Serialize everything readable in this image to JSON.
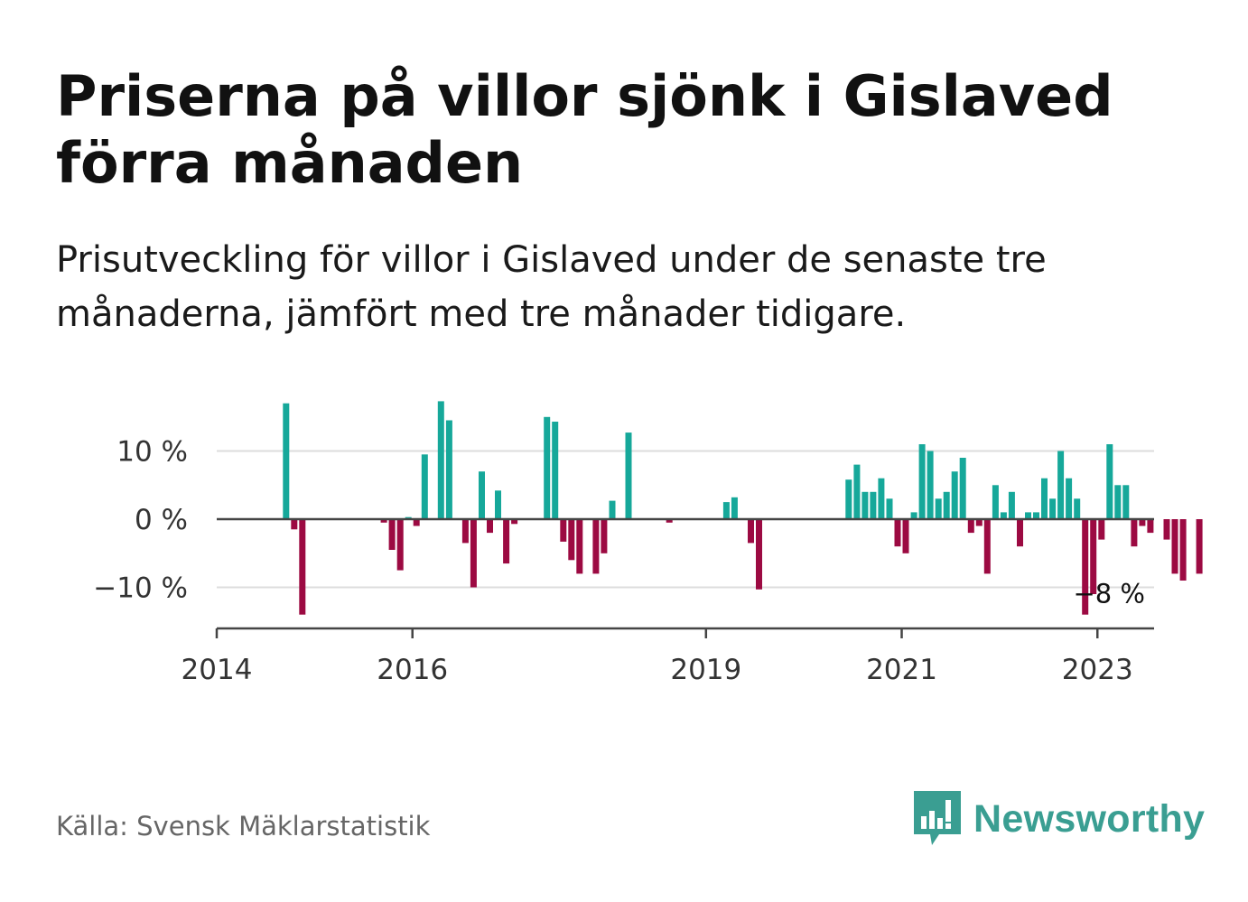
{
  "title": "Priserna på villor sjönk i Gislaved förra månaden",
  "subtitle": "Prisutveckling för villor i Gislaved under de senaste tre månaderna, jämfört med tre månader tidigare.",
  "source": "Källa: Svensk Mäklarstatistik",
  "brand": "Newsworthy",
  "colors": {
    "positive": "#16a89a",
    "negative": "#9c0a42",
    "grid": "#dddddd",
    "axis": "#444444",
    "brand": "#3a9e92"
  },
  "chart_data": {
    "type": "bar",
    "title": "",
    "xlabel": "",
    "ylabel": "",
    "ylim": [
      -16,
      18
    ],
    "y_ticks": [
      10,
      0,
      -10
    ],
    "y_tick_labels": [
      "10 %",
      "0 %",
      "−10 %"
    ],
    "x_ticks": [
      "2014",
      "2016",
      "2019",
      "2021",
      "2023"
    ],
    "start": "2014-01",
    "end_label": "−8 %",
    "series": [
      {
        "name": "Prisutveckling",
        "values": [
          null,
          null,
          null,
          null,
          null,
          null,
          null,
          null,
          17,
          -1.5,
          -14,
          null,
          null,
          null,
          null,
          null,
          null,
          null,
          null,
          null,
          -0.5,
          -4.5,
          -7.5,
          0.3,
          -1,
          9.5,
          null,
          17.3,
          14.5,
          null,
          -3.5,
          -10,
          7,
          -2,
          4.2,
          -6.5,
          -0.7,
          null,
          null,
          null,
          15,
          14.3,
          -3.3,
          -6,
          -8,
          null,
          -8,
          -5,
          2.7,
          null,
          12.7,
          null,
          null,
          null,
          null,
          -0.5,
          null,
          null,
          null,
          null,
          null,
          null,
          2.5,
          3.2,
          null,
          -3.5,
          -10.3,
          null,
          null,
          null,
          null,
          null,
          null,
          null,
          null,
          null,
          null,
          5.8,
          8,
          4,
          4,
          6,
          3,
          -4,
          -5,
          1,
          11,
          10,
          3,
          4,
          7,
          9,
          -2,
          -1,
          -8,
          5,
          1,
          4,
          -4,
          1,
          1,
          6,
          3,
          10,
          6,
          3,
          -14,
          -11,
          -3,
          11,
          5,
          5,
          -4,
          -1,
          -2,
          null,
          -3,
          -8,
          -9,
          null,
          -8
        ]
      }
    ]
  }
}
